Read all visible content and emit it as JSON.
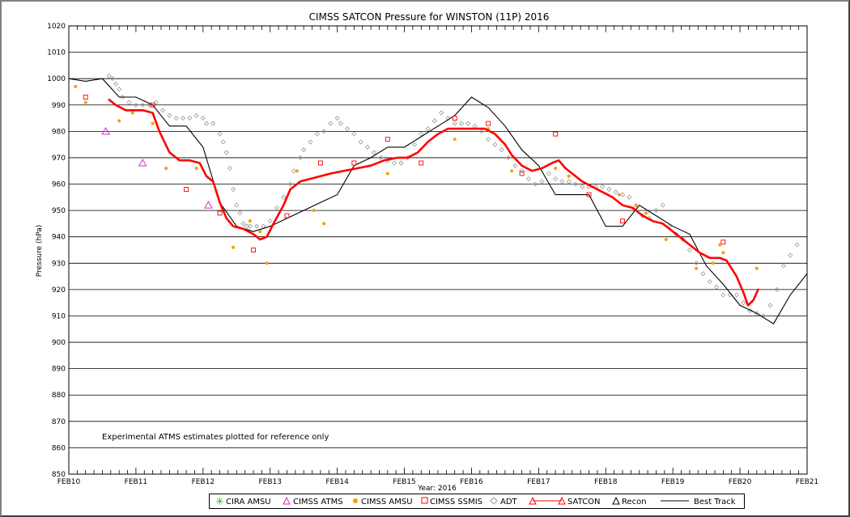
{
  "chart_data": {
    "type": "line",
    "title": "CIMSS SATCON Pressure for WINSTON (11P) 2016",
    "xlabel": "Year: 2016",
    "ylabel": "Pressure (hPa)",
    "note": "Experimental ATMS estimates plotted for reference only",
    "ylim": [
      850,
      1020
    ],
    "y_ticks": [
      1020,
      1010,
      1000,
      990,
      980,
      970,
      960,
      950,
      940,
      930,
      920,
      910,
      900,
      890,
      880,
      870,
      860,
      850
    ],
    "xlim": [
      10,
      21
    ],
    "x_ticks": [
      "FEB10",
      "FEB11",
      "FEB12",
      "FEB13",
      "FEB14",
      "FEB15",
      "FEB16",
      "FEB17",
      "FEB18",
      "FEB19",
      "FEB20",
      "FEB21"
    ],
    "grid": "horizontal",
    "legend_position": "bottom",
    "legend": [
      "CIRA AMSU",
      "CIMSS ATMS",
      "CIMSS AMSU",
      "CIMSS SSMIS",
      "ADT",
      "SATCON",
      "Recon",
      "Best Track"
    ],
    "colors": {
      "satcon": "#ff0000",
      "best_track": "#000000",
      "amsu": "#f5a000",
      "ssmis": "#ff0000",
      "atms": "#cc33cc",
      "adt": "#999999",
      "cira": "#22bb22"
    },
    "series": [
      {
        "name": "Best Track",
        "values": [
          [
            10.0,
            1000
          ],
          [
            10.25,
            999
          ],
          [
            10.5,
            1000
          ],
          [
            10.75,
            993
          ],
          [
            11.0,
            993
          ],
          [
            11.25,
            990
          ],
          [
            11.5,
            982
          ],
          [
            11.75,
            982
          ],
          [
            12.0,
            974
          ],
          [
            12.25,
            953
          ],
          [
            12.5,
            944
          ],
          [
            12.75,
            942
          ],
          [
            13.0,
            944
          ],
          [
            13.25,
            947
          ],
          [
            13.5,
            950
          ],
          [
            13.75,
            953
          ],
          [
            14.0,
            956
          ],
          [
            14.25,
            967
          ],
          [
            14.5,
            970
          ],
          [
            14.75,
            974
          ],
          [
            15.0,
            974
          ],
          [
            15.25,
            978
          ],
          [
            15.5,
            982
          ],
          [
            15.75,
            986
          ],
          [
            16.0,
            993
          ],
          [
            16.25,
            989
          ],
          [
            16.5,
            982
          ],
          [
            16.75,
            973
          ],
          [
            17.0,
            967
          ],
          [
            17.25,
            956
          ],
          [
            17.5,
            956
          ],
          [
            17.75,
            956
          ],
          [
            18.0,
            944
          ],
          [
            18.25,
            944
          ],
          [
            18.5,
            952
          ],
          [
            18.75,
            948
          ],
          [
            19.0,
            944
          ],
          [
            19.25,
            941
          ],
          [
            19.5,
            929
          ],
          [
            19.75,
            922
          ],
          [
            20.0,
            914
          ],
          [
            20.25,
            911
          ],
          [
            20.5,
            907
          ],
          [
            20.75,
            918
          ],
          [
            21.0,
            926
          ]
        ]
      },
      {
        "name": "SATCON",
        "values": [
          [
            10.6,
            992
          ],
          [
            10.7,
            990
          ],
          [
            10.85,
            988
          ],
          [
            11.0,
            988
          ],
          [
            11.1,
            988
          ],
          [
            11.25,
            987
          ],
          [
            11.35,
            980
          ],
          [
            11.5,
            972
          ],
          [
            11.65,
            969
          ],
          [
            11.8,
            969
          ],
          [
            11.95,
            968
          ],
          [
            12.05,
            963
          ],
          [
            12.15,
            961
          ],
          [
            12.25,
            953
          ],
          [
            12.35,
            947
          ],
          [
            12.45,
            944
          ],
          [
            12.6,
            943
          ],
          [
            12.75,
            941
          ],
          [
            12.85,
            939
          ],
          [
            12.95,
            940
          ],
          [
            13.05,
            945
          ],
          [
            13.2,
            952
          ],
          [
            13.3,
            958
          ],
          [
            13.45,
            961
          ],
          [
            13.6,
            962
          ],
          [
            13.75,
            963
          ],
          [
            13.9,
            964
          ],
          [
            14.1,
            965
          ],
          [
            14.3,
            966
          ],
          [
            14.5,
            967
          ],
          [
            14.7,
            969
          ],
          [
            14.9,
            970
          ],
          [
            15.05,
            970
          ],
          [
            15.2,
            972
          ],
          [
            15.35,
            976
          ],
          [
            15.5,
            979
          ],
          [
            15.65,
            981
          ],
          [
            15.8,
            981
          ],
          [
            16.0,
            981
          ],
          [
            16.2,
            981
          ],
          [
            16.35,
            979
          ],
          [
            16.5,
            975
          ],
          [
            16.6,
            971
          ],
          [
            16.75,
            967
          ],
          [
            16.9,
            965
          ],
          [
            17.05,
            966
          ],
          [
            17.2,
            968
          ],
          [
            17.3,
            969
          ],
          [
            17.4,
            966
          ],
          [
            17.5,
            964
          ],
          [
            17.65,
            961
          ],
          [
            17.8,
            959
          ],
          [
            17.95,
            957
          ],
          [
            18.1,
            955
          ],
          [
            18.25,
            952
          ],
          [
            18.4,
            951
          ],
          [
            18.55,
            948
          ],
          [
            18.7,
            946
          ],
          [
            18.85,
            945
          ],
          [
            18.95,
            943
          ],
          [
            19.1,
            940
          ],
          [
            19.25,
            937
          ],
          [
            19.4,
            934
          ],
          [
            19.55,
            932
          ],
          [
            19.7,
            932
          ],
          [
            19.8,
            931
          ],
          [
            19.95,
            925
          ],
          [
            20.05,
            919
          ],
          [
            20.12,
            914
          ],
          [
            20.2,
            916
          ],
          [
            20.27,
            920
          ]
        ]
      },
      {
        "name": "ADT",
        "values": [
          [
            10.6,
            1001
          ],
          [
            10.65,
            1000
          ],
          [
            10.7,
            998
          ],
          [
            10.75,
            996
          ],
          [
            10.8,
            993
          ],
          [
            10.9,
            991
          ],
          [
            11.0,
            990
          ],
          [
            11.1,
            990
          ],
          [
            11.2,
            990
          ],
          [
            11.3,
            991
          ],
          [
            11.4,
            988
          ],
          [
            11.5,
            986
          ],
          [
            11.6,
            985
          ],
          [
            11.7,
            985
          ],
          [
            11.8,
            985
          ],
          [
            11.9,
            986
          ],
          [
            12.0,
            985
          ],
          [
            12.05,
            983
          ],
          [
            12.15,
            983
          ],
          [
            12.25,
            979
          ],
          [
            12.3,
            976
          ],
          [
            12.35,
            972
          ],
          [
            12.4,
            966
          ],
          [
            12.45,
            958
          ],
          [
            12.5,
            952
          ],
          [
            12.55,
            949
          ],
          [
            12.6,
            945
          ],
          [
            12.65,
            944
          ],
          [
            12.7,
            944
          ],
          [
            12.8,
            944
          ],
          [
            12.9,
            944
          ],
          [
            13.0,
            946
          ],
          [
            13.1,
            951
          ],
          [
            13.2,
            955
          ],
          [
            13.3,
            960
          ],
          [
            13.35,
            965
          ],
          [
            13.45,
            970
          ],
          [
            13.5,
            973
          ],
          [
            13.6,
            976
          ],
          [
            13.7,
            979
          ],
          [
            13.8,
            980
          ],
          [
            13.9,
            983
          ],
          [
            14.0,
            985
          ],
          [
            14.05,
            983
          ],
          [
            14.15,
            981
          ],
          [
            14.25,
            979
          ],
          [
            14.35,
            976
          ],
          [
            14.45,
            974
          ],
          [
            14.55,
            972
          ],
          [
            14.65,
            970
          ],
          [
            14.75,
            969
          ],
          [
            14.85,
            968
          ],
          [
            14.95,
            968
          ],
          [
            15.05,
            970
          ],
          [
            15.15,
            975
          ],
          [
            15.25,
            979
          ],
          [
            15.35,
            981
          ],
          [
            15.45,
            984
          ],
          [
            15.55,
            987
          ],
          [
            15.65,
            985
          ],
          [
            15.75,
            983
          ],
          [
            15.85,
            983
          ],
          [
            15.95,
            983
          ],
          [
            16.05,
            982
          ],
          [
            16.15,
            980
          ],
          [
            16.25,
            977
          ],
          [
            16.35,
            975
          ],
          [
            16.45,
            973
          ],
          [
            16.55,
            970
          ],
          [
            16.65,
            967
          ],
          [
            16.75,
            965
          ],
          [
            16.85,
            962
          ],
          [
            16.95,
            960
          ],
          [
            17.05,
            961
          ],
          [
            17.15,
            964
          ],
          [
            17.25,
            962
          ],
          [
            17.35,
            961
          ],
          [
            17.45,
            961
          ],
          [
            17.55,
            960
          ],
          [
            17.65,
            959
          ],
          [
            17.75,
            959
          ],
          [
            17.85,
            959
          ],
          [
            17.95,
            959
          ],
          [
            18.05,
            958
          ],
          [
            18.15,
            957
          ],
          [
            18.25,
            956
          ],
          [
            18.35,
            955
          ],
          [
            18.45,
            951
          ],
          [
            18.55,
            948
          ],
          [
            18.65,
            947
          ],
          [
            18.75,
            950
          ],
          [
            18.85,
            952
          ],
          [
            18.95,
            944
          ],
          [
            19.05,
            941
          ],
          [
            19.15,
            939
          ],
          [
            19.25,
            935
          ],
          [
            19.35,
            930
          ],
          [
            19.45,
            926
          ],
          [
            19.55,
            923
          ],
          [
            19.65,
            921
          ],
          [
            19.75,
            918
          ],
          [
            19.85,
            918
          ],
          [
            19.95,
            918
          ],
          [
            20.05,
            915
          ],
          [
            20.15,
            912
          ],
          [
            20.25,
            911
          ],
          [
            20.35,
            910
          ],
          [
            20.45,
            914
          ],
          [
            20.55,
            920
          ],
          [
            20.65,
            929
          ],
          [
            20.75,
            933
          ],
          [
            20.85,
            937
          ]
        ]
      },
      {
        "name": "CIMSS AMSU",
        "values": [
          [
            10.1,
            997
          ],
          [
            10.25,
            991
          ],
          [
            10.75,
            984
          ],
          [
            10.95,
            987
          ],
          [
            11.25,
            983
          ],
          [
            11.45,
            966
          ],
          [
            11.9,
            966
          ],
          [
            12.45,
            936
          ],
          [
            12.7,
            946
          ],
          [
            12.85,
            942
          ],
          [
            12.95,
            930
          ],
          [
            13.4,
            965
          ],
          [
            13.65,
            950
          ],
          [
            13.8,
            945
          ],
          [
            14.75,
            964
          ],
          [
            15.75,
            977
          ],
          [
            16.25,
            981
          ],
          [
            16.6,
            965
          ],
          [
            17.25,
            966
          ],
          [
            17.45,
            963
          ],
          [
            18.2,
            956
          ],
          [
            18.45,
            952
          ],
          [
            18.6,
            949
          ],
          [
            18.9,
            939
          ],
          [
            19.35,
            928
          ],
          [
            19.6,
            930
          ],
          [
            19.7,
            937
          ],
          [
            19.75,
            934
          ],
          [
            20.25,
            928
          ]
        ]
      },
      {
        "name": "CIMSS SSMIS",
        "values": [
          [
            10.25,
            993
          ],
          [
            11.25,
            990
          ],
          [
            11.75,
            958
          ],
          [
            12.25,
            949
          ],
          [
            12.75,
            935
          ],
          [
            13.25,
            948
          ],
          [
            13.75,
            968
          ],
          [
            14.25,
            968
          ],
          [
            14.75,
            977
          ],
          [
            15.25,
            968
          ],
          [
            15.75,
            985
          ],
          [
            16.25,
            983
          ],
          [
            16.75,
            964
          ],
          [
            17.25,
            979
          ],
          [
            17.75,
            956
          ],
          [
            18.25,
            946
          ],
          [
            19.75,
            938
          ]
        ]
      },
      {
        "name": "CIMSS ATMS",
        "values": [
          [
            10.55,
            980
          ],
          [
            11.1,
            968
          ],
          [
            12.08,
            952
          ]
        ]
      }
    ]
  },
  "legend_labels": {
    "cira": "CIRA AMSU",
    "atms": "CIMSS ATMS",
    "amsu": "CIMSS AMSU",
    "ssmis": "CIMSS SSMIS",
    "adt": "ADT",
    "satcon": "SATCON",
    "recon": "Recon",
    "best_track": "Best Track"
  }
}
